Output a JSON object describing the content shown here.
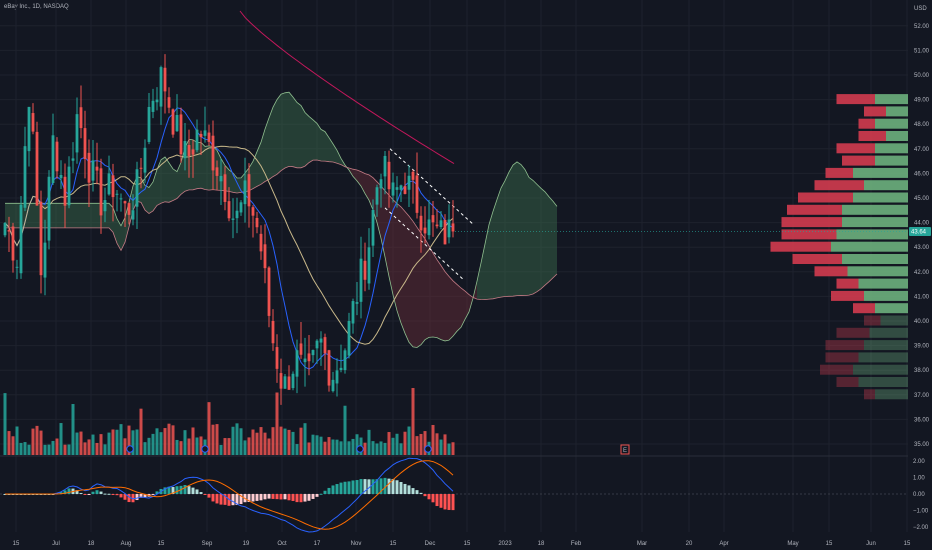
{
  "title": "eBay Inc., 1D, NASDAQ",
  "currency": "USD",
  "colors": {
    "background": "#131722",
    "grid": "#1e222d",
    "up": "#26a69a",
    "down": "#ef5350",
    "ma_long": "#c2185b",
    "ma_fast": "#2962ff",
    "ma_slow": "#c8b88a",
    "cloud_bull": "#3b6e4e",
    "cloud_bear": "#6d2f3a",
    "macd_line": "#2962ff",
    "signal_line": "#ff6d00",
    "vp_up": "#6db07d",
    "vp_down": "#d33b4f",
    "last_price_bg": "#26a69a"
  },
  "chart_data": {
    "type": "candlestick",
    "symbol": "eBay Inc.",
    "interval": "1D",
    "exchange": "NASDAQ",
    "last_price": 43.64,
    "last_price_label": "43.64",
    "ylim": [
      35,
      52
    ],
    "y_ticks": [
      "52.00",
      "51.00",
      "50.00",
      "49.00",
      "48.00",
      "47.00",
      "46.00",
      "45.00",
      "44.00",
      "43.00",
      "42.00",
      "41.00",
      "40.00",
      "39.00",
      "38.00",
      "37.00",
      "36.00",
      "35.00"
    ],
    "x_ticks": [
      "15",
      "Jul",
      "18",
      "Aug",
      "15",
      "Sep",
      "19",
      "Oct",
      "17",
      "Nov",
      "15",
      "Dec",
      "15",
      "2023",
      "18",
      "Feb",
      "Mar",
      "20",
      "Apr",
      "May",
      "15",
      "Jun",
      "15"
    ],
    "candle_segments": [
      [
        44.0,
        42.6,
        49.5,
        41.8,
        47.5,
        45.0
      ],
      [
        45.0,
        48.5,
        46.2,
        44.8,
        45.6,
        44.4
      ],
      [
        44.4,
        45.5,
        49.0,
        50.0,
        48.0,
        46.5
      ],
      [
        46.5,
        47.8,
        46.9,
        45.8,
        44.0,
        45.2
      ],
      [
        45.2,
        43.5,
        39.5,
        37.2,
        38.5,
        37.5
      ],
      [
        37.5,
        39.2,
        37.8,
        38.8,
        41.0,
        43.0
      ],
      [
        43.0,
        46.5,
        45.0,
        45.8,
        44.8,
        43.8
      ],
      [
        43.8,
        43.5,
        43.64
      ]
    ],
    "vp_levels": [
      "49.0",
      "48.5",
      "48.0",
      "47.5",
      "47.0",
      "46.5",
      "46.0",
      "45.5",
      "45.0",
      "44.5",
      "44.0",
      "43.5",
      "43.0",
      "42.5",
      "42.0",
      "41.5",
      "41.0",
      "40.5",
      "40.0",
      "39.5",
      "39.0",
      "38.5",
      "38.0",
      "37.5",
      "37.0"
    ],
    "vp_up": [
      0.3,
      0.2,
      0.3,
      0.2,
      0.3,
      0.3,
      0.5,
      0.4,
      0.5,
      0.6,
      0.6,
      0.65,
      0.7,
      0.6,
      0.55,
      0.45,
      0.4,
      0.3,
      0.25,
      0.35,
      0.4,
      0.45,
      0.5,
      0.45,
      0.3
    ],
    "vp_down": [
      0.35,
      0.2,
      0.15,
      0.25,
      0.35,
      0.3,
      0.25,
      0.45,
      0.5,
      0.5,
      0.55,
      0.5,
      0.55,
      0.45,
      0.3,
      0.2,
      0.3,
      0.2,
      0.15,
      0.3,
      0.35,
      0.3,
      0.3,
      0.2,
      0.1
    ],
    "macd": {
      "ylim": [
        -2.3,
        2.3
      ],
      "ticks": [
        "2.00",
        "1.00",
        "0.00",
        "−1.00",
        "−2.00"
      ]
    },
    "events_tag": "E"
  }
}
